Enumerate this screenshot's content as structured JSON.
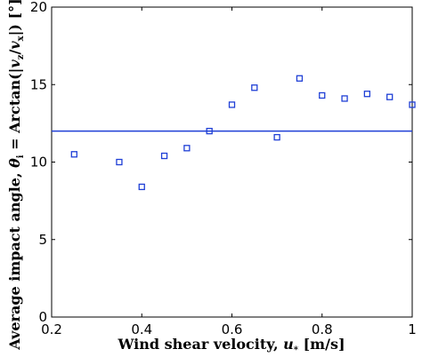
{
  "chart_data": {
    "type": "scatter",
    "title": "",
    "xlabel": "Wind shear velocity, u* [m/s]",
    "ylabel": "Average impact angle, θi = Arctan(|vz/vx|) [°]",
    "xlim": [
      0.2,
      1.0
    ],
    "ylim": [
      0,
      20
    ],
    "xticks": [
      "0.2",
      "0.4",
      "0.6",
      "0.8",
      "1"
    ],
    "yticks": [
      "0",
      "5",
      "10",
      "15",
      "20"
    ],
    "grid": false,
    "colors": {
      "series": "#1f3fd6",
      "axis": "#000000"
    },
    "series": [
      {
        "marker": "square",
        "x": [
          0.25,
          0.35,
          0.4,
          0.45,
          0.5,
          0.55,
          0.6,
          0.65,
          0.7,
          0.75,
          0.8,
          0.85,
          0.9,
          0.95,
          1.0
        ],
        "y": [
          10.5,
          10.0,
          8.4,
          10.4,
          10.9,
          12.0,
          13.7,
          14.8,
          11.6,
          15.4,
          14.3,
          14.1,
          14.4,
          14.2,
          13.7
        ]
      }
    ],
    "reference_lines": [
      {
        "orientation": "horizontal",
        "y": 12.0
      }
    ]
  }
}
